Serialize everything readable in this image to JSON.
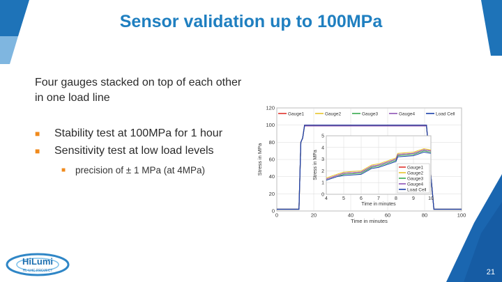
{
  "slide": {
    "title": "Sensor validation up to 100MPa",
    "intro": "Four gauges stacked on top of each other in one load line",
    "bullets": [
      "Stability test at 100MPa for 1 hour",
      "Sensitivity test at low load levels"
    ],
    "sub_bullets": [
      "precision of ± 1 MPa (at 4MPa)"
    ],
    "page_number": "21",
    "logo_text": "HiLumi",
    "logo_subtext": "HL-LHC PROJECT"
  },
  "colors": {
    "title": "#1f7fc0",
    "bullet": "#f08a1c",
    "accent": "#1a66b0"
  },
  "chart_data": [
    {
      "type": "line",
      "xlabel": "Time in minutes",
      "ylabel": "Stress in MPa",
      "xlim": [
        0,
        100
      ],
      "ylim": [
        0,
        120
      ],
      "xticks": [
        0,
        20,
        40,
        60,
        80,
        100
      ],
      "yticks": [
        0,
        20,
        40,
        60,
        80,
        100,
        120
      ],
      "grid": true,
      "legend": "top",
      "series": [
        {
          "name": "Gauge1",
          "color": "#e0322c",
          "x": [
            0,
            12,
            13,
            14,
            15,
            80,
            81,
            85,
            100
          ],
          "y": [
            2,
            2,
            80,
            85,
            100,
            100,
            100,
            2,
            2
          ]
        },
        {
          "name": "Gauge2",
          "color": "#e7c52a",
          "x": [
            0,
            12,
            13,
            14,
            15,
            80,
            81,
            85,
            100
          ],
          "y": [
            2,
            2,
            80,
            85,
            99,
            99,
            99,
            2,
            2
          ]
        },
        {
          "name": "Gauge3",
          "color": "#36a84c",
          "x": [
            0,
            12,
            13,
            14,
            15,
            80,
            81,
            85,
            100
          ],
          "y": [
            2,
            2,
            80,
            85,
            99,
            99,
            99,
            2,
            2
          ]
        },
        {
          "name": "Gauge4",
          "color": "#8d52b5",
          "x": [
            0,
            12,
            13,
            14,
            15,
            80,
            81,
            85,
            100
          ],
          "y": [
            2,
            2,
            80,
            85,
            99,
            99,
            99,
            2,
            2
          ]
        },
        {
          "name": "Load Cell",
          "color": "#1a3fa8",
          "x": [
            0,
            12,
            13,
            14,
            15,
            80,
            81,
            85,
            100
          ],
          "y": [
            2,
            2,
            80,
            85,
            100,
            100,
            100,
            2,
            2
          ]
        }
      ]
    },
    {
      "type": "line",
      "xlabel": "Time in minutes",
      "ylabel": "Stress in MPa",
      "xlim": [
        4,
        10
      ],
      "ylim": [
        0,
        5
      ],
      "xticks": [
        4,
        5,
        6,
        7,
        8,
        9,
        10
      ],
      "yticks": [
        0,
        1,
        2,
        3,
        4,
        5
      ],
      "grid": true,
      "legend": "bottom-right",
      "series": [
        {
          "name": "Gauge1",
          "color": "#e0322c",
          "x": [
            4,
            4.6,
            5,
            6,
            6.6,
            7,
            8,
            8.1,
            9,
            9.6,
            10
          ],
          "y": [
            1.3,
            1.6,
            1.8,
            1.9,
            2.4,
            2.5,
            3.0,
            3.4,
            3.5,
            3.8,
            3.7
          ]
        },
        {
          "name": "Gauge2",
          "color": "#e7c52a",
          "x": [
            4,
            4.6,
            5,
            6,
            6.6,
            7,
            8,
            8.1,
            9,
            9.6,
            10
          ],
          "y": [
            1.4,
            1.7,
            1.9,
            2.0,
            2.5,
            2.6,
            3.1,
            3.5,
            3.6,
            3.9,
            3.8
          ]
        },
        {
          "name": "Gauge3",
          "color": "#36a84c",
          "x": [
            4,
            4.6,
            5,
            6,
            6.6,
            7,
            8,
            8.1,
            9,
            9.6,
            10
          ],
          "y": [
            1.2,
            1.5,
            1.7,
            1.8,
            2.3,
            2.4,
            2.9,
            3.3,
            3.4,
            3.7,
            3.6
          ]
        },
        {
          "name": "Gauge4",
          "color": "#8d52b5",
          "x": [
            4,
            4.6,
            5,
            6,
            6.6,
            7,
            8,
            8.1,
            9,
            9.6,
            10
          ],
          "y": [
            1.3,
            1.6,
            1.8,
            1.9,
            2.4,
            2.5,
            3.0,
            3.4,
            3.5,
            3.8,
            3.7
          ]
        },
        {
          "name": "Load Cell",
          "color": "#1a3fa8",
          "x": [
            4,
            4.6,
            5,
            6,
            6.6,
            7,
            8,
            8.1,
            9,
            9.6,
            10
          ],
          "y": [
            1.2,
            1.5,
            1.6,
            1.7,
            2.2,
            2.3,
            2.8,
            3.2,
            3.3,
            3.6,
            3.5
          ]
        }
      ]
    }
  ]
}
